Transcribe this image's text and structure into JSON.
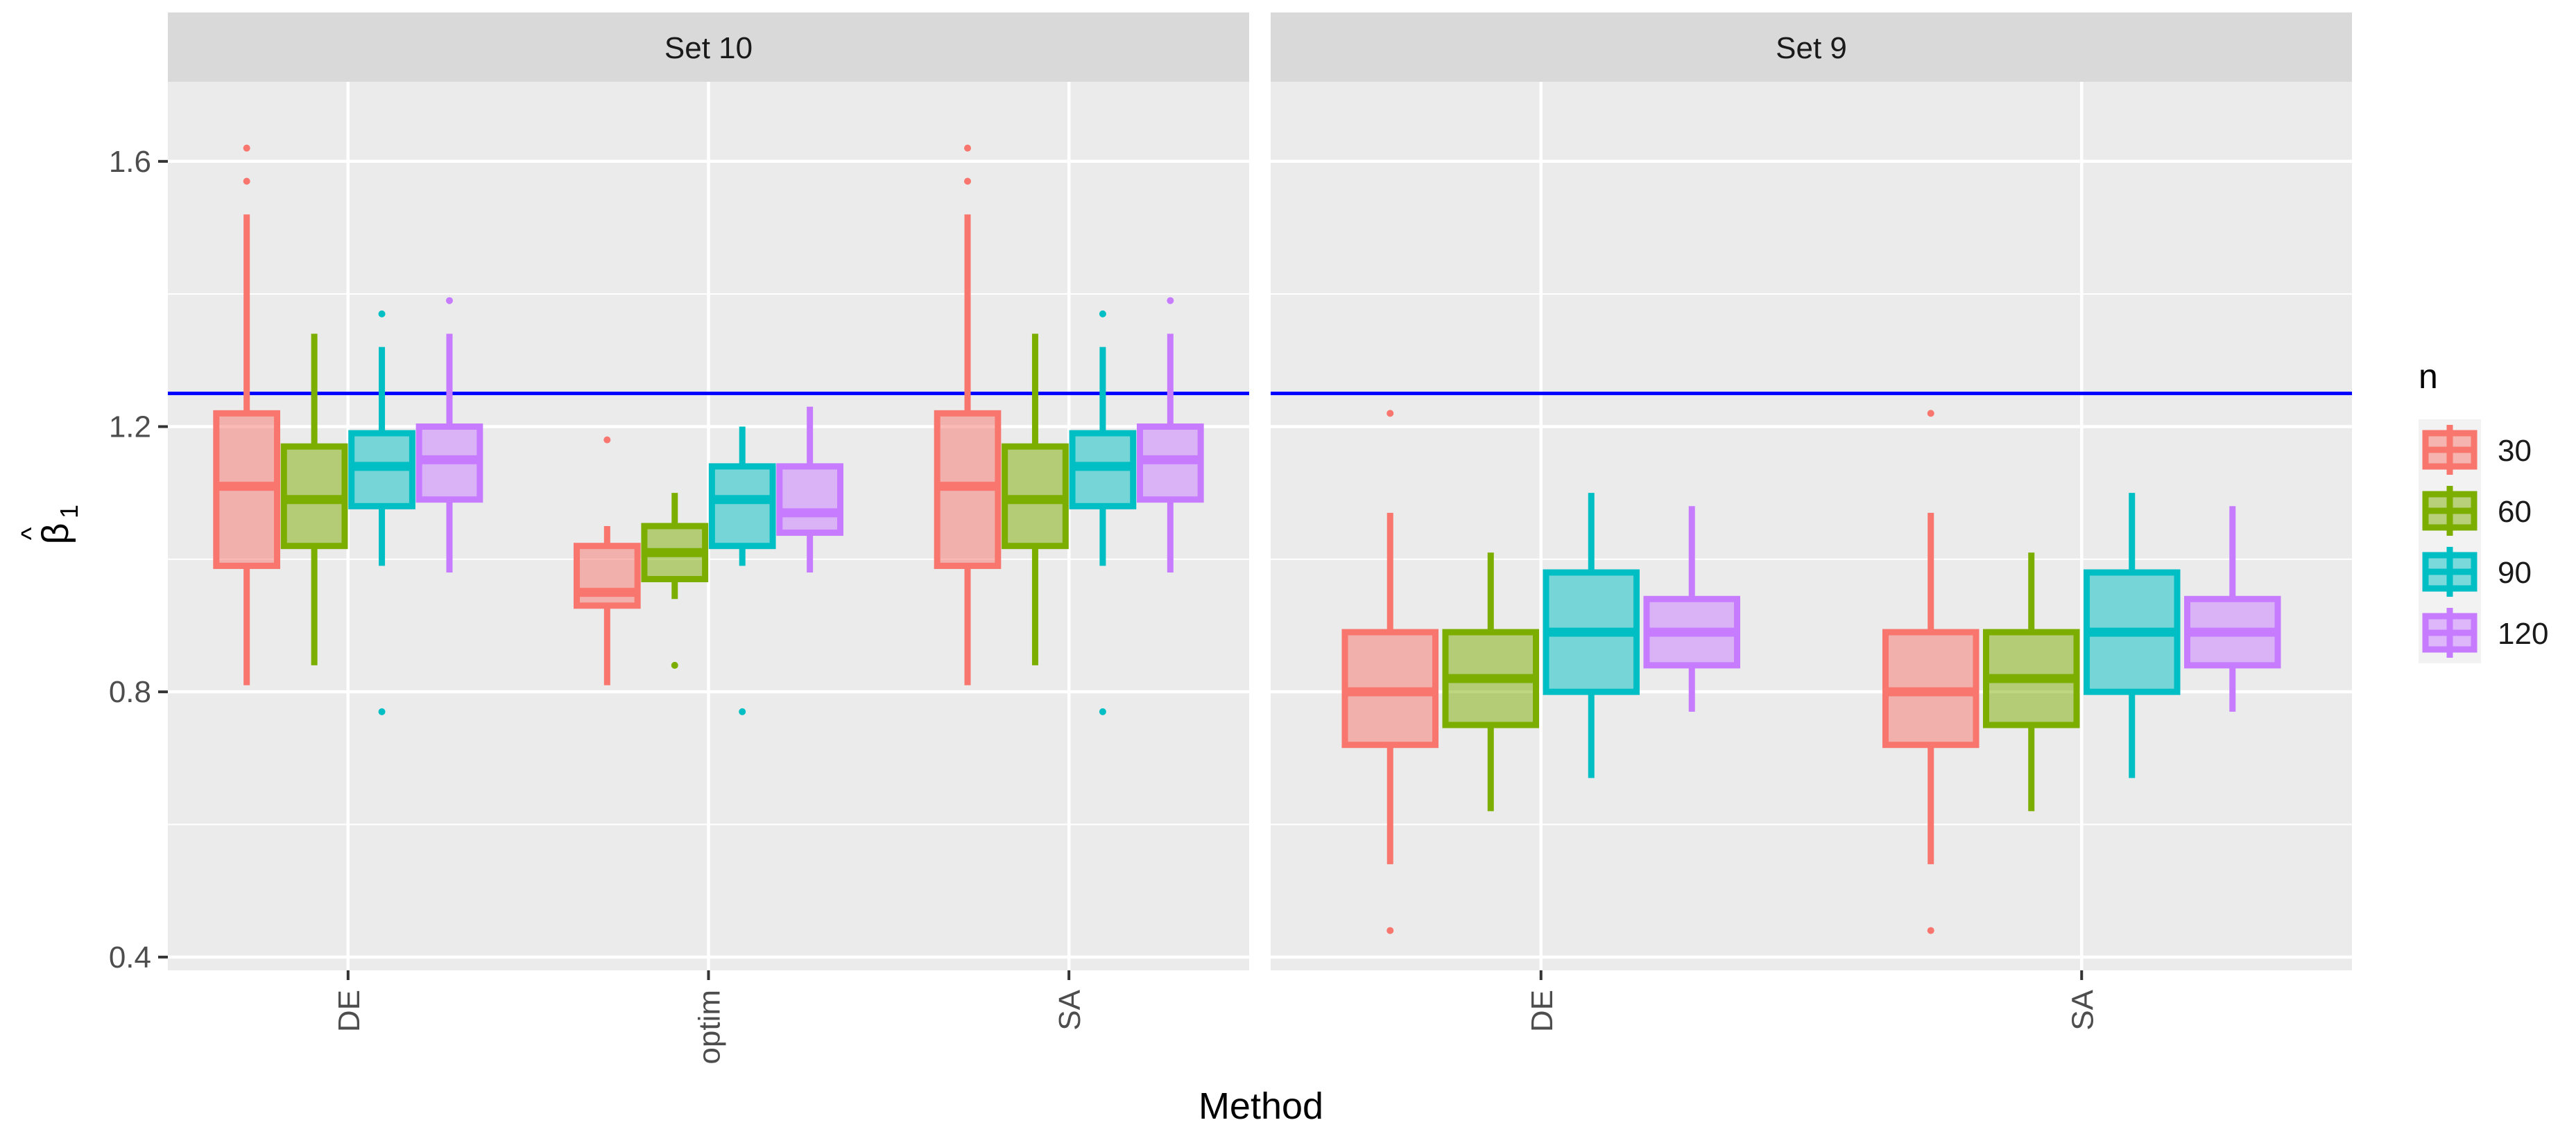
{
  "chart_data": {
    "type": "boxplot",
    "xlabel": "Method",
    "ylabel": "β̂₁",
    "ylabel_base": "β",
    "ylabel_hat": "^",
    "ylabel_sub": "1",
    "ylim": [
      0.38,
      1.72
    ],
    "yticks": [
      0.4,
      0.8,
      1.2,
      1.6
    ],
    "ytick_labels": [
      "0.4",
      "0.8",
      "1.2",
      "1.6"
    ],
    "reference_line": {
      "value": 1.25,
      "color": "#0000FF"
    },
    "legend": {
      "title": "n",
      "position": "right",
      "entries": [
        {
          "label": "30",
          "color": "#F8766D"
        },
        {
          "label": "60",
          "color": "#7CAE00"
        },
        {
          "label": "90",
          "color": "#00BFC4"
        },
        {
          "label": "120",
          "color": "#C77CFF"
        }
      ]
    },
    "colors": {
      "panel_bg": "#EBEBEB",
      "grid": "#FFFFFF",
      "strip_bg": "#D9D9D9",
      "text": "#1A1A1A",
      "axis_text": "#4D4D4D"
    },
    "panels": [
      {
        "title": "Set 10",
        "categories": [
          "DE",
          "optim",
          "SA"
        ],
        "boxes": [
          [
            {
              "n": "30",
              "whisker_low": 0.81,
              "q1": 0.99,
              "median": 1.11,
              "q3": 1.22,
              "whisker_high": 1.52,
              "outliers": [
                1.57,
                1.62
              ]
            },
            {
              "n": "60",
              "whisker_low": 0.84,
              "q1": 1.02,
              "median": 1.09,
              "q3": 1.17,
              "whisker_high": 1.34,
              "outliers": []
            },
            {
              "n": "90",
              "whisker_low": 0.99,
              "q1": 1.08,
              "median": 1.14,
              "q3": 1.19,
              "whisker_high": 1.32,
              "outliers": [
                0.77,
                1.37
              ]
            },
            {
              "n": "120",
              "whisker_low": 0.98,
              "q1": 1.09,
              "median": 1.15,
              "q3": 1.2,
              "whisker_high": 1.34,
              "outliers": [
                1.39
              ]
            }
          ],
          [
            {
              "n": "30",
              "whisker_low": 0.81,
              "q1": 0.93,
              "median": 0.95,
              "q3": 1.02,
              "whisker_high": 1.05,
              "outliers": [
                1.18
              ]
            },
            {
              "n": "60",
              "whisker_low": 0.94,
              "q1": 0.97,
              "median": 1.01,
              "q3": 1.05,
              "whisker_high": 1.1,
              "outliers": [
                0.84
              ]
            },
            {
              "n": "90",
              "whisker_low": 0.99,
              "q1": 1.02,
              "median": 1.09,
              "q3": 1.14,
              "whisker_high": 1.2,
              "outliers": [
                0.77
              ]
            },
            {
              "n": "120",
              "whisker_low": 0.98,
              "q1": 1.04,
              "median": 1.07,
              "q3": 1.14,
              "whisker_high": 1.23,
              "outliers": []
            }
          ],
          [
            {
              "n": "30",
              "whisker_low": 0.81,
              "q1": 0.99,
              "median": 1.11,
              "q3": 1.22,
              "whisker_high": 1.52,
              "outliers": [
                1.57,
                1.62
              ]
            },
            {
              "n": "60",
              "whisker_low": 0.84,
              "q1": 1.02,
              "median": 1.09,
              "q3": 1.17,
              "whisker_high": 1.34,
              "outliers": []
            },
            {
              "n": "90",
              "whisker_low": 0.99,
              "q1": 1.08,
              "median": 1.14,
              "q3": 1.19,
              "whisker_high": 1.32,
              "outliers": [
                0.77,
                1.37
              ]
            },
            {
              "n": "120",
              "whisker_low": 0.98,
              "q1": 1.09,
              "median": 1.15,
              "q3": 1.2,
              "whisker_high": 1.34,
              "outliers": [
                1.39
              ]
            }
          ]
        ]
      },
      {
        "title": "Set 9",
        "categories": [
          "DE",
          "SA"
        ],
        "boxes": [
          [
            {
              "n": "30",
              "whisker_low": 0.54,
              "q1": 0.72,
              "median": 0.8,
              "q3": 0.89,
              "whisker_high": 1.07,
              "outliers": [
                0.44,
                1.22
              ]
            },
            {
              "n": "60",
              "whisker_low": 0.62,
              "q1": 0.75,
              "median": 0.82,
              "q3": 0.89,
              "whisker_high": 1.01,
              "outliers": []
            },
            {
              "n": "90",
              "whisker_low": 0.67,
              "q1": 0.8,
              "median": 0.89,
              "q3": 0.98,
              "whisker_high": 1.1,
              "outliers": []
            },
            {
              "n": "120",
              "whisker_low": 0.77,
              "q1": 0.84,
              "median": 0.89,
              "q3": 0.94,
              "whisker_high": 1.08,
              "outliers": []
            }
          ],
          [
            {
              "n": "30",
              "whisker_low": 0.54,
              "q1": 0.72,
              "median": 0.8,
              "q3": 0.89,
              "whisker_high": 1.07,
              "outliers": [
                0.44,
                1.22
              ]
            },
            {
              "n": "60",
              "whisker_low": 0.62,
              "q1": 0.75,
              "median": 0.82,
              "q3": 0.89,
              "whisker_high": 1.01,
              "outliers": []
            },
            {
              "n": "90",
              "whisker_low": 0.67,
              "q1": 0.8,
              "median": 0.89,
              "q3": 0.98,
              "whisker_high": 1.1,
              "outliers": []
            },
            {
              "n": "120",
              "whisker_low": 0.77,
              "q1": 0.84,
              "median": 0.89,
              "q3": 0.94,
              "whisker_high": 1.08,
              "outliers": []
            }
          ]
        ]
      }
    ]
  }
}
